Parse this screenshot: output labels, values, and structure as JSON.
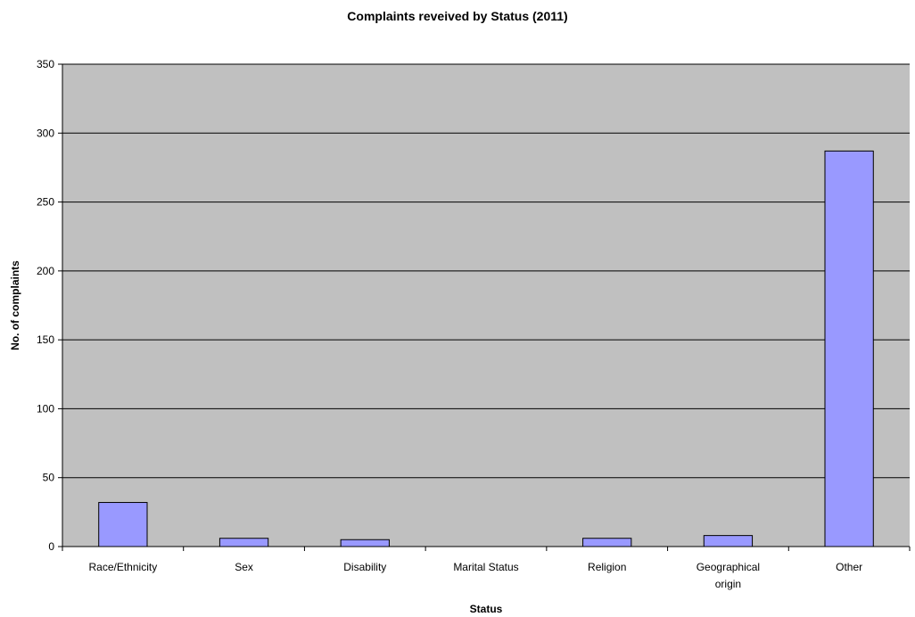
{
  "chart_data": {
    "type": "bar",
    "title": "Complaints reveived by Status (2011)",
    "xlabel": "Status",
    "ylabel": "No. of complaints",
    "categories": [
      "Race/Ethnicity",
      "Sex",
      "Disability",
      "Marital Status",
      "Religion",
      "Geographical origin",
      "Other"
    ],
    "category_label_lines": [
      [
        "Race/Ethnicity"
      ],
      [
        "Sex"
      ],
      [
        "Disability"
      ],
      [
        "Marital Status"
      ],
      [
        "Religion"
      ],
      [
        "Geographical",
        "origin"
      ],
      [
        "Other"
      ]
    ],
    "values": [
      32,
      6,
      5,
      0,
      6,
      8,
      287
    ],
    "ylim": [
      0,
      350
    ],
    "yticks": [
      0,
      50,
      100,
      150,
      200,
      250,
      300,
      350
    ],
    "grid": true,
    "legend": "none",
    "colors": {
      "plot_background": "#c0c0c0",
      "bar_fill": "#9999ff",
      "bar_stroke": "#000000",
      "gridline": "#000000"
    }
  }
}
